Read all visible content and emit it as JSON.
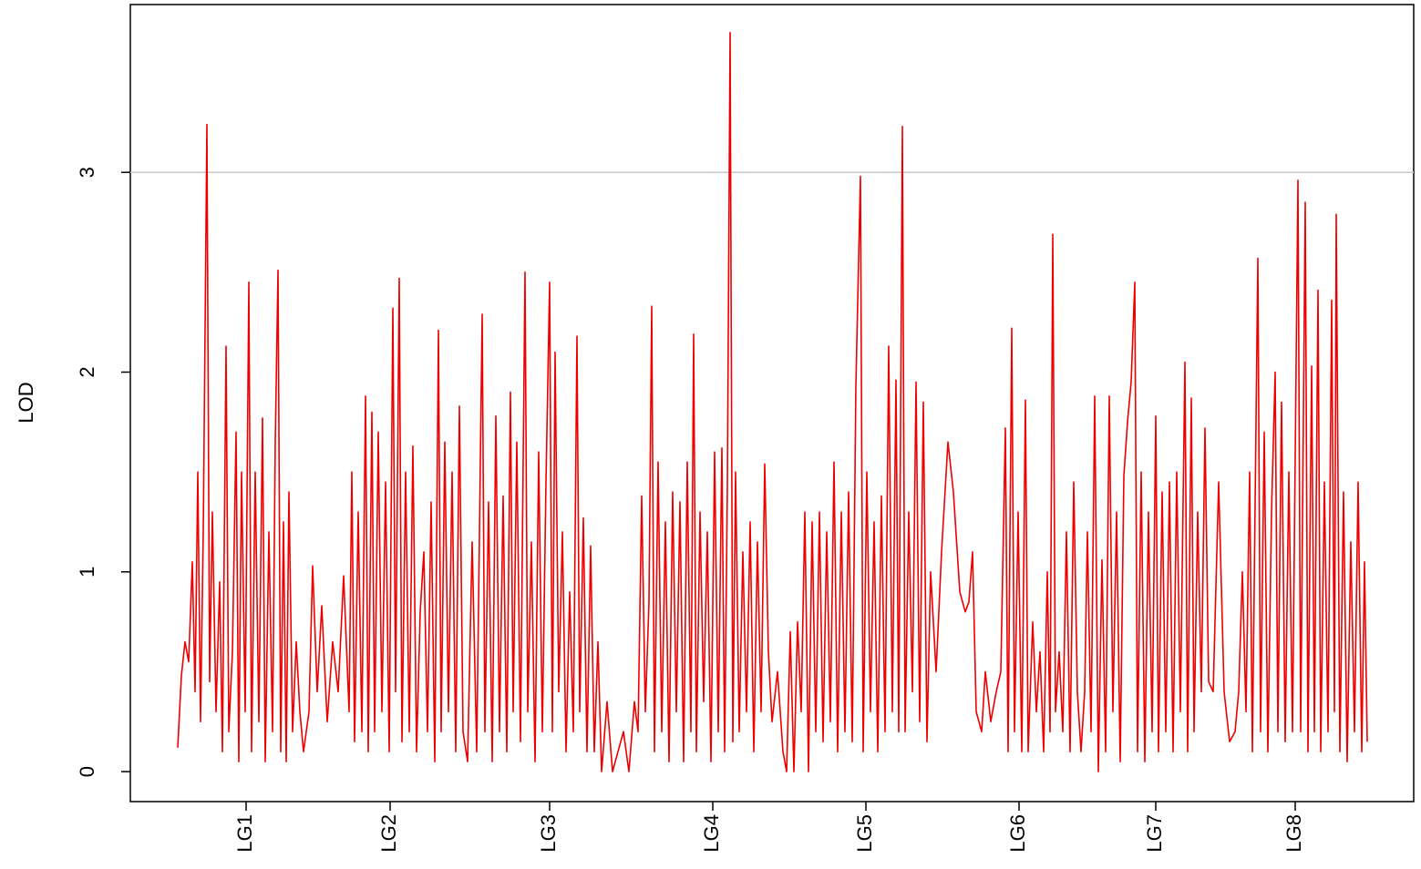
{
  "chart_data": {
    "type": "line",
    "ylabel": "LOD",
    "x": [
      52,
      56,
      60,
      64,
      68,
      71,
      74,
      77,
      80,
      84,
      87,
      90,
      94,
      98,
      101,
      105,
      108,
      112,
      116,
      119,
      122,
      126,
      130,
      133,
      137,
      141,
      145,
      148,
      152,
      156,
      159,
      162,
      165,
      168,
      171,
      174,
      178,
      182,
      186,
      190,
      196,
      200,
      205,
      210,
      216,
      222,
      228,
      234,
      240,
      243,
      246,
      250,
      254,
      258,
      261,
      265,
      268,
      272,
      276,
      280,
      284,
      288,
      291,
      295,
      298,
      302,
      306,
      310,
      314,
      318,
      322,
      326,
      330,
      334,
      338,
      341,
      345,
      349,
      353,
      357,
      361,
      365,
      370,
      375,
      380,
      386,
      389,
      393,
      397,
      401,
      405,
      409,
      413,
      417,
      420,
      424,
      428,
      433,
      436,
      440,
      444,
      448,
      452,
      456,
      460,
      463,
      466,
      470,
      474,
      478,
      482,
      486,
      490,
      493,
      497,
      501,
      505,
      509,
      513,
      517,
      523,
      529,
      535,
      541,
      547,
      553,
      557,
      561,
      565,
      569,
      572,
      575,
      579,
      583,
      587,
      591,
      595,
      599,
      603,
      607,
      611,
      615,
      618,
      621,
      625,
      629,
      633,
      637,
      641,
      645,
      649,
      652,
      655,
      658,
      661,
      664,
      668,
      672,
      676,
      680,
      684,
      688,
      692,
      696,
      700,
      704,
      710,
      716,
      720,
      724,
      728,
      732,
      736,
      740,
      744,
      748,
      752,
      756,
      760,
      764,
      768,
      772,
      776,
      780,
      784,
      788,
      792,
      796,
      801,
      804,
      808,
      812,
      816,
      820,
      824,
      828,
      832,
      836,
      840,
      843,
      847,
      850,
      854,
      858,
      862,
      866,
      870,
      874,
      878,
      884,
      890,
      897,
      903,
      910,
      916,
      920,
      924,
      928,
      934,
      938,
      944,
      950,
      955,
      960,
      963,
      967,
      970,
      974,
      978,
      982,
      985,
      990,
      994,
      998,
      1002,
      1006,
      1009,
      1012,
      1015,
      1019,
      1023,
      1027,
      1031,
      1035,
      1039,
      1043,
      1047,
      1050,
      1054,
      1058,
      1062,
      1066,
      1070,
      1074,
      1078,
      1082,
      1086,
      1090,
      1094,
      1098,
      1102,
      1105,
      1109,
      1113,
      1117,
      1121,
      1125,
      1128,
      1132,
      1136,
      1140,
      1144,
      1148,
      1152,
      1157,
      1160,
      1164,
      1167,
      1171,
      1175,
      1179,
      1183,
      1188,
      1194,
      1200,
      1206,
      1212,
      1216,
      1220,
      1224,
      1228,
      1231,
      1237,
      1240,
      1244,
      1248,
      1252,
      1256,
      1259,
      1263,
      1267,
      1271,
      1275,
      1281,
      1284,
      1289,
      1292,
      1296,
      1299,
      1303,
      1306,
      1310,
      1314,
      1318,
      1321,
      1323,
      1327,
      1331,
      1335,
      1339,
      1343,
      1347,
      1351,
      1354,
      1357
    ],
    "series": [
      {
        "name": "LOD",
        "color": "#ee0000",
        "values": [
          0.12,
          0.48,
          0.65,
          0.55,
          1.05,
          0.4,
          1.5,
          0.25,
          1.2,
          3.24,
          0.45,
          1.3,
          0.3,
          0.95,
          0.1,
          2.13,
          0.2,
          0.6,
          1.7,
          0.05,
          1.5,
          0.3,
          2.45,
          0.1,
          1.5,
          0.25,
          1.77,
          0.05,
          1.2,
          0.2,
          1.65,
          2.51,
          0.1,
          1.25,
          0.05,
          1.4,
          0.2,
          0.65,
          0.3,
          0.1,
          0.3,
          1.03,
          0.4,
          0.83,
          0.25,
          0.65,
          0.4,
          0.98,
          0.3,
          1.5,
          0.15,
          1.3,
          0.2,
          1.88,
          0.1,
          1.8,
          0.2,
          1.7,
          0.3,
          1.45,
          0.1,
          2.32,
          0.4,
          2.47,
          0.15,
          1.5,
          0.2,
          1.63,
          0.1,
          0.8,
          1.1,
          0.2,
          1.35,
          0.05,
          2.21,
          0.2,
          1.65,
          0.3,
          1.5,
          0.1,
          1.83,
          0.2,
          0.05,
          1.15,
          0.1,
          2.29,
          0.2,
          1.35,
          0.05,
          1.78,
          0.2,
          1.38,
          0.1,
          1.9,
          0.3,
          1.65,
          0.15,
          2.5,
          0.3,
          1.15,
          0.05,
          1.6,
          0.2,
          1.45,
          2.45,
          0.2,
          2.1,
          0.4,
          1.2,
          0.1,
          0.9,
          0.2,
          2.18,
          0.3,
          1.27,
          0.1,
          1.13,
          0.1,
          0.65,
          0,
          0.35,
          0,
          0.1,
          0.2,
          0,
          0.35,
          0.2,
          1.38,
          0.3,
          0.85,
          2.33,
          0.1,
          1.55,
          0.2,
          1.25,
          0.05,
          1.4,
          0.3,
          1.35,
          0.05,
          1.55,
          0.2,
          2.19,
          0.1,
          1.3,
          0.35,
          1.2,
          0.05,
          1.6,
          0.2,
          1.62,
          0.1,
          1.43,
          3.7,
          0.15,
          1.5,
          0.2,
          1.1,
          0.3,
          1.25,
          0.1,
          1.15,
          0.3,
          1.54,
          0.6,
          0.25,
          0.5,
          0.1,
          0,
          0.7,
          0,
          0.75,
          0.3,
          1.3,
          0,
          1.25,
          0.2,
          1.3,
          0.15,
          1.2,
          0.25,
          1.55,
          0.1,
          1.3,
          0.2,
          1.4,
          0.15,
          1.93,
          2.98,
          0.1,
          1.5,
          0.3,
          1.25,
          0.1,
          1.38,
          0.2,
          2.13,
          0.3,
          1.96,
          0.2,
          3.23,
          0.2,
          1.3,
          0.4,
          1.95,
          0.25,
          1.85,
          0.15,
          1.0,
          0.5,
          1.1,
          1.65,
          1.4,
          0.9,
          0.8,
          0.85,
          1.1,
          0.3,
          0.2,
          0.5,
          0.25,
          0.4,
          0.5,
          1.72,
          0.1,
          2.22,
          0.2,
          1.3,
          0.1,
          1.86,
          0.1,
          0.75,
          0.3,
          0.6,
          0.1,
          1.0,
          0.2,
          2.69,
          0.3,
          0.6,
          0.2,
          1.2,
          0.1,
          1.45,
          0.4,
          0.1,
          0.4,
          1.2,
          0.2,
          1.88,
          0,
          1.06,
          0.1,
          1.88,
          0.3,
          1.3,
          0.05,
          1.48,
          1.75,
          1.95,
          2.45,
          0.1,
          1.5,
          0.05,
          1.3,
          0.2,
          1.78,
          0.1,
          1.4,
          0.2,
          1.45,
          0.1,
          1.5,
          0.3,
          2.05,
          0.1,
          1.87,
          0.2,
          1.3,
          0.4,
          1.72,
          0.45,
          0.4,
          1.45,
          0.4,
          0.15,
          0.2,
          0.4,
          1.0,
          0.3,
          1.5,
          0.1,
          2.57,
          0.2,
          1.7,
          0.1,
          1.3,
          2.0,
          0.2,
          1.85,
          0.15,
          1.5,
          0.2,
          2.96,
          0.2,
          2.85,
          0.1,
          2.03,
          0.2,
          2.41,
          0.1,
          1.45,
          0.2,
          2.36,
          0.3,
          2.79,
          0.1,
          1.4,
          0.05,
          1.15,
          0.2,
          1.45,
          0.1,
          1.05,
          0.15
        ]
      }
    ],
    "xlim": [
      0,
      1408
    ],
    "ylim": [
      -0.15,
      3.84
    ],
    "xticks": [
      {
        "value": 127,
        "label": "LG1"
      },
      {
        "value": 285,
        "label": "LG2"
      },
      {
        "value": 460,
        "label": "LG3"
      },
      {
        "value": 639,
        "label": "LG4"
      },
      {
        "value": 807,
        "label": "LG5"
      },
      {
        "value": 975,
        "label": "LG6"
      },
      {
        "value": 1125,
        "label": "LG7"
      },
      {
        "value": 1278,
        "label": "LG8"
      }
    ],
    "yticks": [
      0,
      1,
      2,
      3
    ],
    "threshold": 3,
    "threshold_color": "#c8c8c8"
  }
}
